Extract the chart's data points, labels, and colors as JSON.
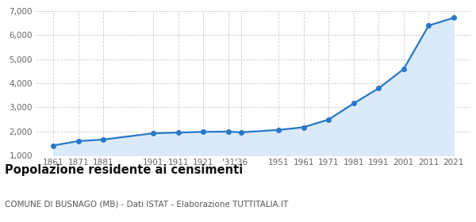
{
  "years": [
    1861,
    1871,
    1881,
    1901,
    1911,
    1921,
    1931,
    1936,
    1951,
    1961,
    1971,
    1981,
    1991,
    2001,
    2011,
    2021
  ],
  "population": [
    1412,
    1595,
    1660,
    1920,
    1950,
    1980,
    1990,
    1960,
    2060,
    2170,
    2490,
    3160,
    3790,
    4590,
    6400,
    6720
  ],
  "xtick_positions": [
    1861,
    1871,
    1881,
    1901,
    1911,
    1921,
    1931,
    1936,
    1951,
    1961,
    1971,
    1981,
    1991,
    2001,
    2011,
    2021
  ],
  "xtick_labels": [
    "1861",
    "1871",
    "1881",
    "1901",
    "1911",
    "1921",
    "'31",
    "'36",
    "1951",
    "1961",
    "1971",
    "1981",
    "1991",
    "2001",
    "2011",
    "2021"
  ],
  "line_color": "#2878c8",
  "fill_color": "#daeaf8",
  "marker_color": "#2878c8",
  "background_color": "#ffffff",
  "grid_color": "#cccccc",
  "ylim": [
    1000,
    7000
  ],
  "yticks": [
    1000,
    2000,
    3000,
    4000,
    5000,
    6000,
    7000
  ],
  "xlim_min": 1854,
  "xlim_max": 2028,
  "title": "Popolazione residente ai censimenti",
  "title_fontsize": 10.5,
  "subtitle": "COMUNE DI BUSNAGO (MB) - Dati ISTAT - Elaborazione TUTTITALIA.IT",
  "subtitle_fontsize": 7.5,
  "tick_color": "#666666",
  "tick_fontsize": 7.5
}
